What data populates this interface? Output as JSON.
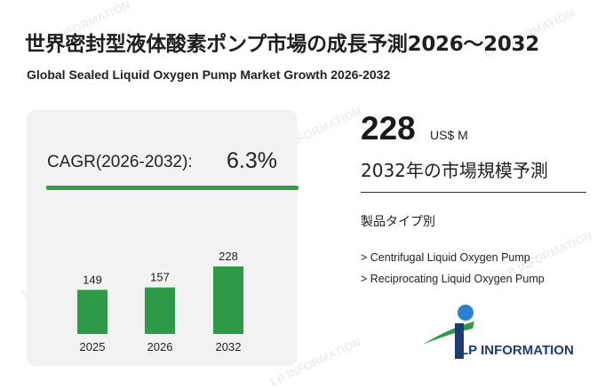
{
  "header": {
    "title_jp": "世界密封型液体酸素ポンプ市場の成長予測2026～2032",
    "title_en": "Global Sealed Liquid Oxygen Pump Market Growth 2026-2032"
  },
  "cagr": {
    "label": "CAGR(2026-2032):",
    "value": "6.3%"
  },
  "chart_data": {
    "type": "bar",
    "categories": [
      "2025",
      "2026",
      "2032"
    ],
    "values": [
      149,
      157,
      228
    ],
    "color": "#2e9a47"
  },
  "summary": {
    "value": "228",
    "unit": "US$ M",
    "forecast_label": "2032年の市場規模予測",
    "segment_title": "製品タイプ別",
    "segments": [
      "> Centrifugal Liquid Oxygen Pump",
      "> Reciprocating Liquid Oxygen Pump"
    ]
  },
  "logo": {
    "text": "LP INFORMATION",
    "colors": [
      "#1e3c6e",
      "#2e9a47",
      "#2a7fd0"
    ]
  },
  "watermark": {
    "text": "LP INFORMATION"
  }
}
